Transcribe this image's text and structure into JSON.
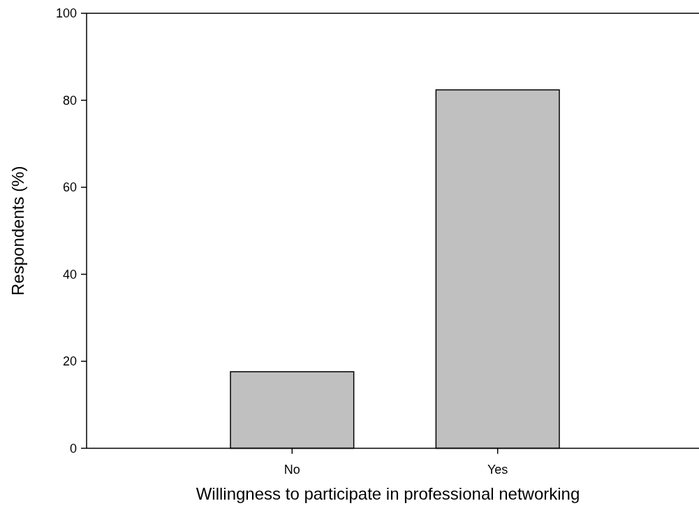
{
  "chart_data": {
    "type": "bar",
    "xlabel": "Willingness to participate in professional networking",
    "ylabel": "Respondents (%)",
    "categories": [
      "No",
      "Yes"
    ],
    "values": [
      17.6,
      82.4
    ],
    "color": "#c0c0c0",
    "ylim": [
      0,
      100
    ],
    "yticks": [
      0,
      20,
      40,
      60,
      80,
      100
    ],
    "grid": false
  }
}
